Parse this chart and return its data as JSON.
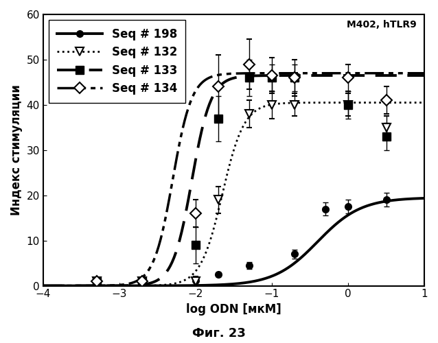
{
  "title_annotation": "M402, hTLR9",
  "xlabel": "log ODN [мкМ]",
  "ylabel": "Индекс стимуляции",
  "caption": "Фиг. 23",
  "xlim": [
    -4,
    1
  ],
  "ylim": [
    0,
    60
  ],
  "xticks": [
    -4,
    -3,
    -2,
    -1,
    0,
    1
  ],
  "yticks": [
    0,
    10,
    20,
    30,
    40,
    50,
    60
  ],
  "seq198": {
    "label": "Seq # 198",
    "linestyle": "solid",
    "linewidth": 2.8,
    "color": "black",
    "marker": "o",
    "markersize": 7,
    "markerfacecolor": "black",
    "markeredgecolor": "black",
    "x_data": [
      -3.3,
      -2.7,
      -2.0,
      -1.7,
      -1.3,
      -0.7,
      -0.3,
      0.0,
      0.5
    ],
    "y_data": [
      1.0,
      1.0,
      1.2,
      2.5,
      4.5,
      7.0,
      17.0,
      17.5,
      19.0
    ],
    "yerr": [
      0.3,
      0.3,
      0.3,
      0.5,
      0.7,
      1.0,
      1.5,
      1.5,
      1.5
    ],
    "sigmoid_max": 19.5,
    "sigmoid_mid": -0.4,
    "sigmoid_k": 3.5
  },
  "seq132": {
    "label": "Seq # 132",
    "linestyle": "dotted",
    "linewidth": 2.0,
    "color": "black",
    "marker": "v",
    "markersize": 9,
    "markerfacecolor": "white",
    "markeredgecolor": "black",
    "markeredgewidth": 1.5,
    "x_data": [
      -3.3,
      -2.7,
      -2.0,
      -1.7,
      -1.3,
      -1.0,
      -0.7,
      0.0,
      0.5
    ],
    "y_data": [
      1.0,
      1.0,
      1.0,
      19.0,
      38.0,
      40.0,
      40.0,
      40.0,
      35.0
    ],
    "yerr": [
      0.3,
      0.3,
      1.0,
      3.0,
      3.0,
      3.0,
      2.5,
      2.5,
      2.5
    ],
    "sigmoid_max": 40.5,
    "sigmoid_mid": -1.65,
    "sigmoid_k": 7.0
  },
  "seq133": {
    "label": "Seq # 133",
    "linestyle": "dashed",
    "linewidth": 2.8,
    "color": "black",
    "marker": "s",
    "markersize": 8,
    "markerfacecolor": "black",
    "markeredgecolor": "black",
    "x_data": [
      -3.3,
      -2.7,
      -2.0,
      -1.7,
      -1.3,
      -1.0,
      -0.7,
      0.0,
      0.5
    ],
    "y_data": [
      1.0,
      1.0,
      9.0,
      37.0,
      46.0,
      46.0,
      46.0,
      40.0,
      33.0
    ],
    "yerr": [
      0.3,
      0.3,
      4.0,
      5.0,
      4.0,
      3.0,
      3.0,
      3.0,
      3.0
    ],
    "sigmoid_max": 46.5,
    "sigmoid_mid": -2.05,
    "sigmoid_k": 8.0
  },
  "seq134": {
    "label": "Seq # 134",
    "linewidth": 2.5,
    "color": "black",
    "marker": "D",
    "markersize": 8,
    "markerfacecolor": "white",
    "markeredgecolor": "black",
    "markeredgewidth": 1.5,
    "x_data": [
      -3.3,
      -2.7,
      -2.0,
      -1.7,
      -1.3,
      -1.0,
      -0.7,
      0.0,
      0.5
    ],
    "y_data": [
      1.0,
      1.0,
      16.0,
      44.0,
      49.0,
      46.5,
      46.0,
      46.0,
      41.0
    ],
    "yerr": [
      0.3,
      0.3,
      3.0,
      7.0,
      5.5,
      4.0,
      4.0,
      3.0,
      3.0
    ],
    "sigmoid_max": 47.0,
    "sigmoid_mid": -2.3,
    "sigmoid_k": 8.0
  },
  "background_color": "white",
  "figcaption_fontsize": 13,
  "axis_fontsize": 12,
  "legend_fontsize": 12,
  "tick_fontsize": 11
}
